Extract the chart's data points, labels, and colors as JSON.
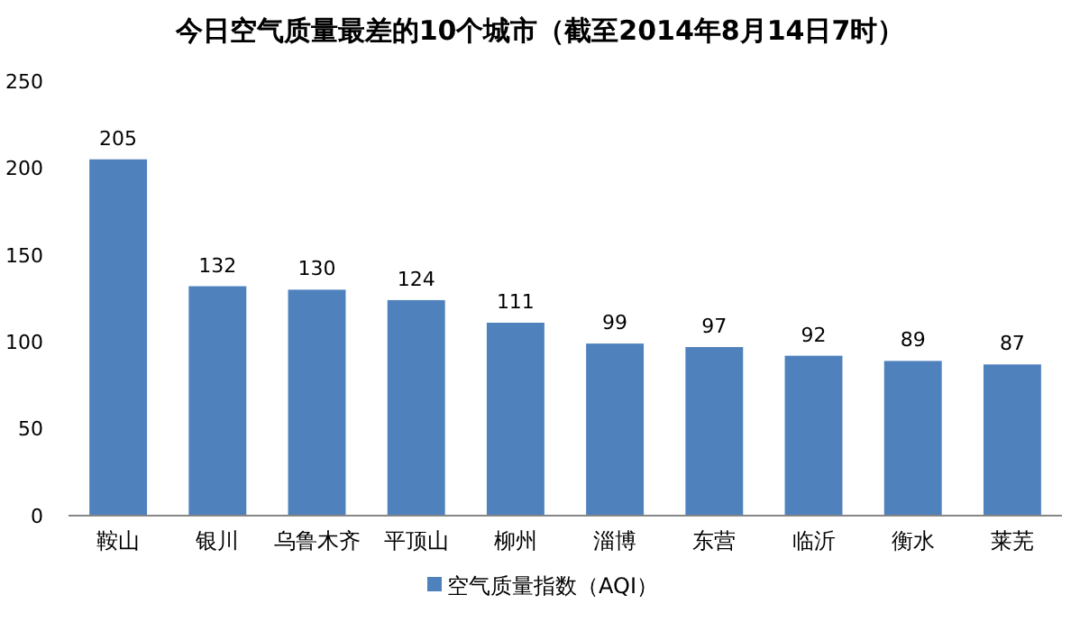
{
  "chart_data": {
    "type": "bar",
    "title": "今日空气质量最差的10个城市（截至2014年8月14日7时）",
    "categories": [
      "鞍山",
      "银川",
      "乌鲁木齐",
      "平顶山",
      "柳州",
      "淄博",
      "东营",
      "临沂",
      "衡水",
      "莱芜"
    ],
    "series": [
      {
        "name": "空气质量指数（AQI）",
        "color": "#4f81bd",
        "values": [
          205,
          132,
          130,
          124,
          111,
          99,
          97,
          92,
          89,
          87
        ]
      }
    ],
    "ylim": [
      0,
      250
    ],
    "yticks": [
      0,
      50,
      100,
      150,
      200,
      250
    ],
    "data_labels": true,
    "legend": "bottom",
    "grid": false
  }
}
